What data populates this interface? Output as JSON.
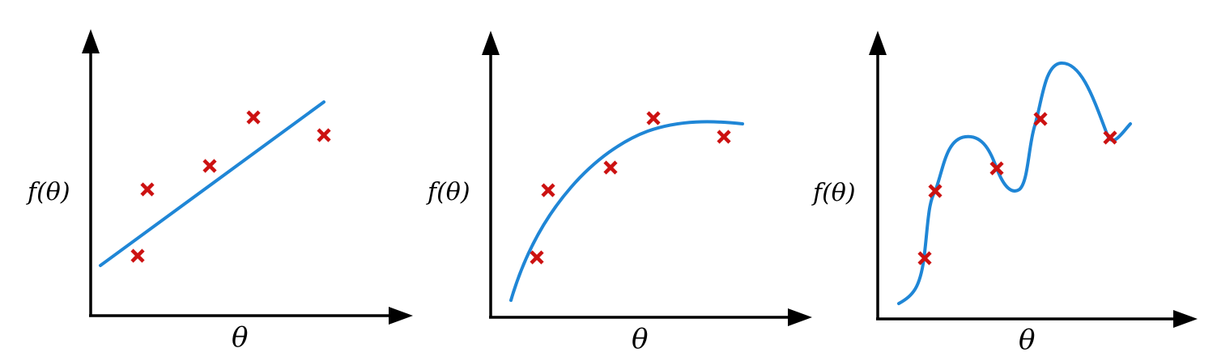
{
  "colors": {
    "curve": "#1f86d6",
    "marker": "#cc1111",
    "axis": "#000000"
  },
  "panels": [
    {
      "fit": "linear",
      "ylabel": "f(θ)",
      "xlabel": "θ"
    },
    {
      "fit": "concave",
      "ylabel": "f(θ)",
      "xlabel": "θ"
    },
    {
      "fit": "overfit",
      "ylabel": "f(θ)",
      "xlabel": "θ"
    }
  ]
}
